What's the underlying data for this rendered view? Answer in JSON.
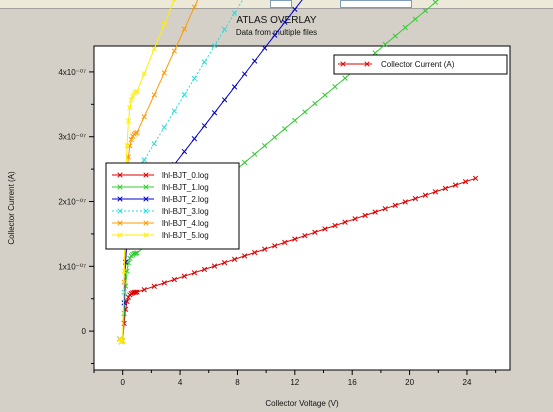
{
  "chart_data": {
    "type": "line",
    "title": "ATLAS OVERLAY",
    "subtitle": "Data from multiple files",
    "xlabel": "Collector Voltage (V)",
    "ylabel": "Collector Current (A)",
    "xlim": [
      -2,
      27
    ],
    "ylim": [
      -6e-08,
      4.4e-07
    ],
    "x_ticks": [
      0,
      4,
      8,
      12,
      16,
      20,
      24
    ],
    "x_tick_labels": [
      "0",
      "4",
      "8",
      "12",
      "16",
      "20",
      "24"
    ],
    "y_ticks": [
      0,
      1e-07,
      2e-07,
      3e-07,
      4e-07
    ],
    "y_tick_labels": [
      "0",
      "1x10⁻⁰⁷",
      "2x10⁻⁰⁷",
      "3x10⁻⁰⁷",
      "4x10⁻⁰⁷"
    ],
    "grid": false,
    "legend_top": {
      "position": "top-right",
      "label": "Collector Current (A)",
      "color": "#dd0000"
    },
    "legend_files": {
      "position": "left",
      "labels": [
        "lhl-BJT_0.log",
        "lhl-BJT_1.log",
        "lhl-BJT_2.log",
        "lhl-BJT_3.log",
        "lhl-BJT_4.log",
        "lhl-BJT_5.log"
      ]
    },
    "series": [
      {
        "name": "lhl-BJT_0.log",
        "color": "#dd0000",
        "base": 6e-08,
        "slope": 2.4e-10,
        "dashed": false
      },
      {
        "name": "lhl-BJT_1.log",
        "color": "#33cc33",
        "base": 1.2e-07,
        "slope": 6e-10,
        "dashed": false
      },
      {
        "name": "lhl-BJT_2.log",
        "color": "#0000cc",
        "base": 1.82e-07,
        "slope": 9.2e-10,
        "dashed": false
      },
      {
        "name": "lhl-BJT_3.log",
        "color": "#22dddd",
        "base": 2.45e-07,
        "slope": 1.16e-09,
        "dashed": true
      },
      {
        "name": "lhl-BJT_4.log",
        "color": "#ff9900",
        "base": 3.05e-07,
        "slope": 1.56e-09,
        "dashed": false
      },
      {
        "name": "lhl-BJT_5.log",
        "color": "#ffee00",
        "base": 3.68e-07,
        "slope": 1.76e-09,
        "dashed": false
      }
    ]
  }
}
